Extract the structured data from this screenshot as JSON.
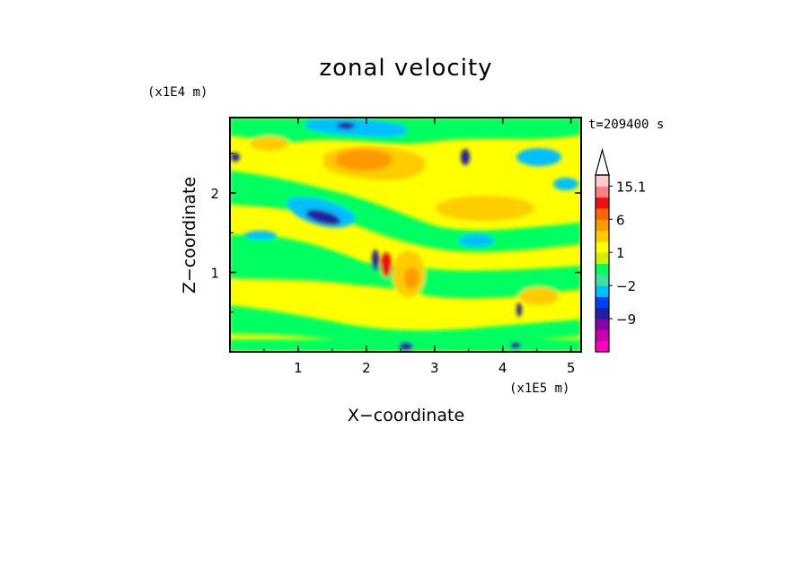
{
  "chart_data": {
    "type": "heatmap",
    "title": "zonal velocity",
    "xlabel": "X−coordinate",
    "ylabel": "Z−coordinate",
    "x_unit": "(x1E5 m)",
    "y_unit": "(x1E4 m)",
    "time_label": "t=209400 s",
    "xlim": [
      0,
      5.15
    ],
    "ylim": [
      0,
      2.95
    ],
    "x_ticks": [
      1,
      2,
      3,
      4,
      5
    ],
    "y_ticks": [
      1,
      2
    ],
    "colorbar": {
      "levels": [
        -15,
        -12,
        -9,
        -6,
        -3,
        -2,
        -1,
        0,
        1,
        2,
        3,
        6,
        9,
        12,
        15.1
      ],
      "labels": [
        {
          "value": 15.1,
          "text": "15.1"
        },
        {
          "value": 6,
          "text": "6"
        },
        {
          "value": 1,
          "text": "1"
        },
        {
          "value": -2,
          "text": "−2"
        },
        {
          "value": -9,
          "text": "−9"
        }
      ],
      "colors": [
        "#ff00bb",
        "#cc00aa",
        "#8800aa",
        "#2020a0",
        "#0040ff",
        "#00bfff",
        "#40e0a0",
        "#00ff60",
        "#d0f000",
        "#ffff00",
        "#ffcc00",
        "#ff9900",
        "#ff6600",
        "#ee1111",
        "#ff8080",
        "#ffcccc"
      ]
    }
  }
}
